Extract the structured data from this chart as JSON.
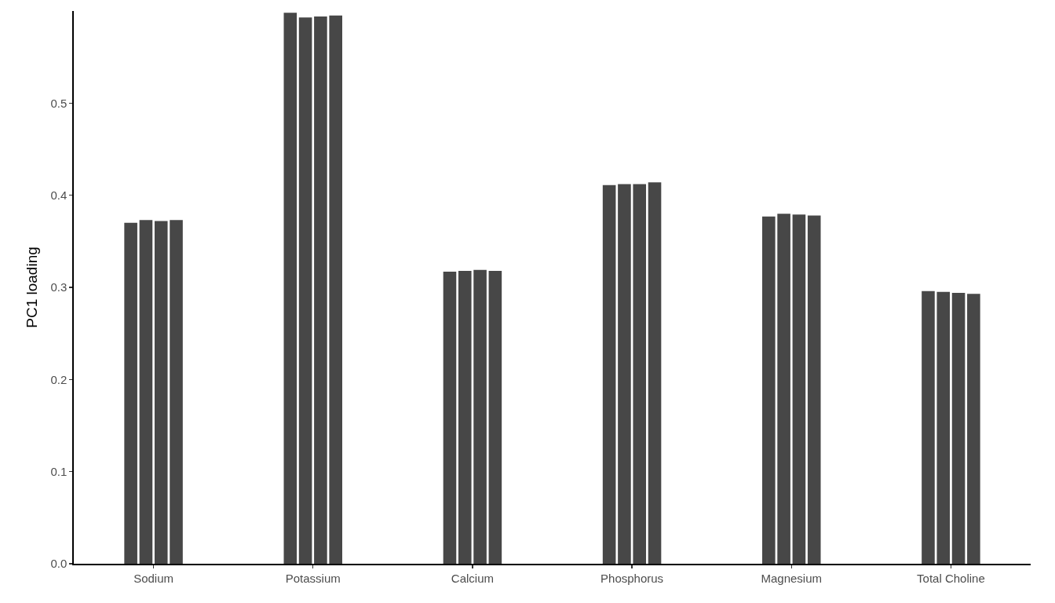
{
  "chart_data": {
    "type": "bar",
    "ylabel": "PC1 loading",
    "categories": [
      "Sodium",
      "Potassium",
      "Calcium",
      "Phosphorus",
      "Magnesium",
      "Total Choline"
    ],
    "series": [
      {
        "color": "#474747",
        "values": [
          0.37,
          0.598,
          0.317,
          0.411,
          0.377,
          0.296
        ]
      },
      {
        "color": "#474747",
        "values": [
          0.373,
          0.593,
          0.318,
          0.412,
          0.38,
          0.295
        ]
      },
      {
        "color": "#474747",
        "values": [
          0.372,
          0.594,
          0.319,
          0.412,
          0.379,
          0.294
        ]
      },
      {
        "color": "#474747",
        "values": [
          0.373,
          0.595,
          0.318,
          0.414,
          0.378,
          0.293
        ]
      }
    ],
    "ylim": [
      0,
      0.6
    ],
    "yticks": [
      {
        "value": 0,
        "label": "0.0"
      },
      0.1,
      0.2,
      0.3,
      0.4,
      0.5
    ]
  }
}
